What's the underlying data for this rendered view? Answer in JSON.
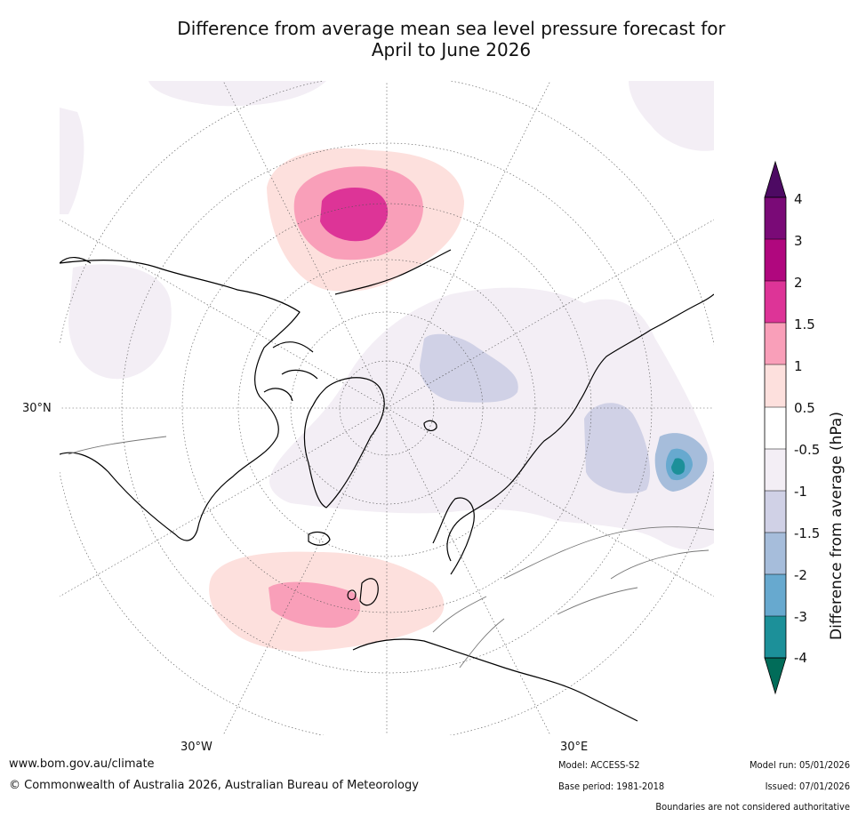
{
  "title_line1": "Difference from average mean sea level pressure forecast for",
  "title_line2": "April to June 2026",
  "map": {
    "projection": "north polar stereographic",
    "lat_labels": [
      "30°N"
    ],
    "lon_labels": [
      "30°W",
      "30°E"
    ],
    "anomalies": [
      {
        "region": "Bering Strait / Chukotka",
        "sign": "positive",
        "max_hpa": 2.0
      },
      {
        "region": "North Atlantic",
        "sign": "positive",
        "max_hpa": 1.5
      },
      {
        "region": "Arctic Ocean / Greenland",
        "sign": "negative",
        "min_hpa": -1.0
      },
      {
        "region": "Barents / Kara Sea",
        "sign": "negative",
        "min_hpa": -1.5
      },
      {
        "region": "Lake Baikal",
        "sign": "negative",
        "min_hpa": -3.0
      }
    ]
  },
  "colorbar": {
    "label": "Difference from average (hPa)",
    "ticks": [
      "4",
      "3",
      "2",
      "1.5",
      "1",
      "0.5",
      "-0.5",
      "-1",
      "-1.5",
      "-2",
      "-3",
      "-4"
    ],
    "colors": {
      "over": "#4d0a63",
      "c3_4": "#7a0a77",
      "c2_3": "#b0077e",
      "c15_2": "#dd3497",
      "c1_15": "#f99fb9",
      "c05_1": "#fde0dd",
      "c_neutral": "#ffffff",
      "cm1_m05": "#f3eef5",
      "cm15_m1": "#d0d1e6",
      "cm2_m15": "#a6bddb",
      "cm3_m2": "#67a9cf",
      "cm4_m3": "#1c9099",
      "under": "#016c59"
    }
  },
  "footer": {
    "website": "www.bom.gov.au/climate",
    "copyright": "© Commonwealth of Australia 2026, Australian Bureau of Meteorology",
    "model": "Model: ACCESS-S2",
    "base_period": "Base period: 1981-2018",
    "model_run": "Model run: 05/01/2026",
    "issued": "Issued: 07/01/2026",
    "disclaimer": "Boundaries are not considered authoritative"
  }
}
